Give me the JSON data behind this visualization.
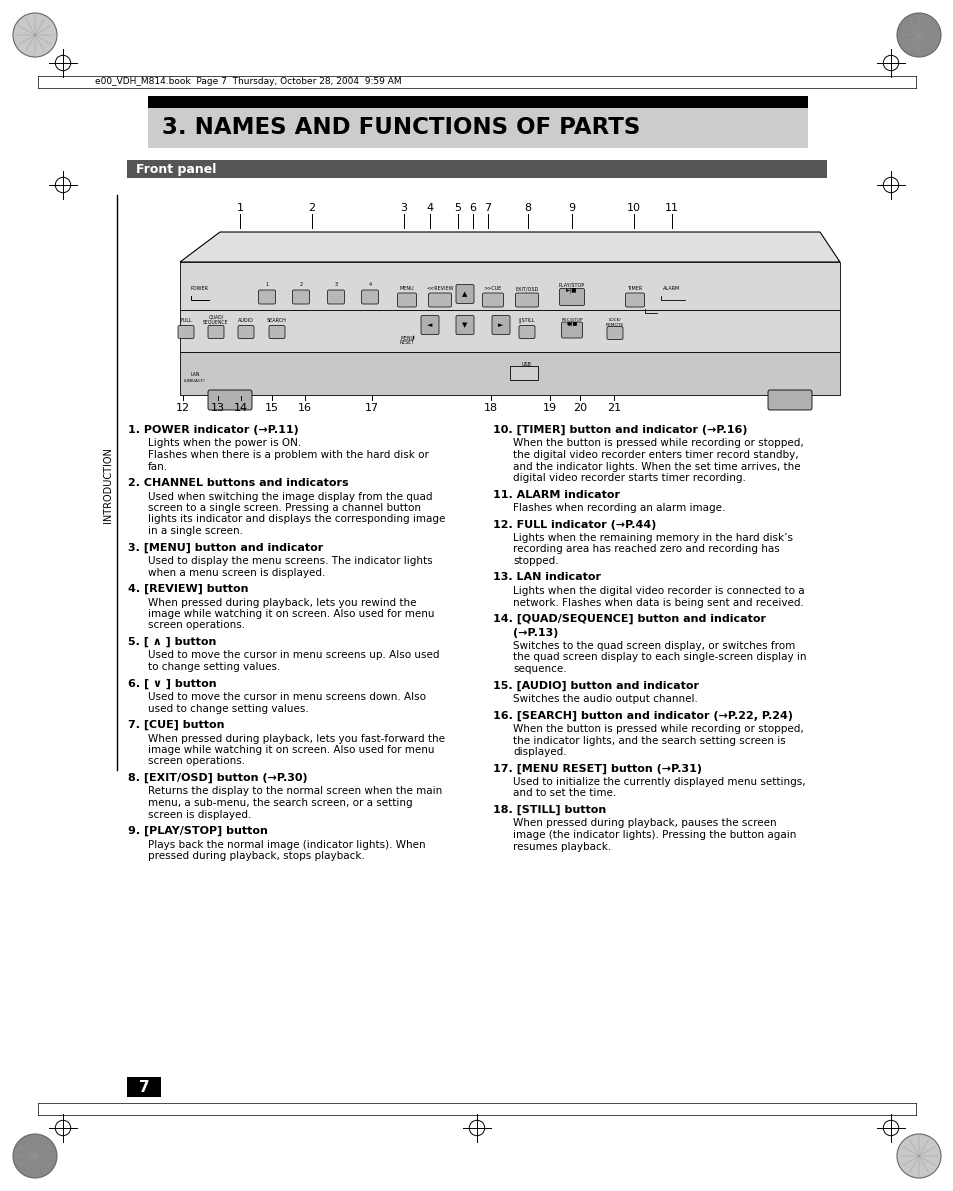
{
  "title": "3. NAMES AND FUNCTIONS OF PARTS",
  "section": "Front panel",
  "header_text": "e00_VDH_M814.book  Page 7  Thursday, October 28, 2004  9:59 AM",
  "page_number": "7",
  "bg_color": "#ffffff",
  "items_left": [
    {
      "num": "1.",
      "title": "POWER indicator (→P.11)",
      "desc": [
        "Lights when the power is ON.",
        "Flashes when there is a problem with the hard disk or",
        "fan."
      ]
    },
    {
      "num": "2.",
      "title": "CHANNEL buttons and indicators",
      "desc": [
        "Used when switching the image display from the quad",
        "screen to a single screen. Pressing a channel button",
        "lights its indicator and displays the corresponding image",
        "in a single screen."
      ]
    },
    {
      "num": "3.",
      "title": "[MENU] button and indicator",
      "desc": [
        "Used to display the menu screens. The indicator lights",
        "when a menu screen is displayed."
      ]
    },
    {
      "num": "4.",
      "title": "[REVIEW] button",
      "desc": [
        "When pressed during playback, lets you rewind the",
        "image while watching it on screen. Also used for menu",
        "screen operations."
      ]
    },
    {
      "num": "5.",
      "title": "[ ∧ ] button",
      "desc": [
        "Used to move the cursor in menu screens up. Also used",
        "to change setting values."
      ]
    },
    {
      "num": "6.",
      "title": "[ ∨ ] button",
      "desc": [
        "Used to move the cursor in menu screens down. Also",
        "used to change setting values."
      ]
    },
    {
      "num": "7.",
      "title": "[CUE] button",
      "desc": [
        "When pressed during playback, lets you fast-forward the",
        "image while watching it on screen. Also used for menu",
        "screen operations."
      ]
    },
    {
      "num": "8.",
      "title": "[EXIT/OSD] button (→P.30)",
      "desc": [
        "Returns the display to the normal screen when the main",
        "menu, a sub-menu, the search screen, or a setting",
        "screen is displayed."
      ]
    },
    {
      "num": "9.",
      "title": "[PLAY/STOP] button",
      "desc": [
        "Plays back the normal image (indicator lights). When",
        "pressed during playback, stops playback."
      ]
    }
  ],
  "items_right": [
    {
      "num": "10.",
      "title": "[TIMER] button and indicator (→P.16)",
      "desc": [
        "When the button is pressed while recording or stopped,",
        "the digital video recorder enters timer record standby,",
        "and the indicator lights. When the set time arrives, the",
        "digital video recorder starts timer recording."
      ]
    },
    {
      "num": "11.",
      "title": "ALARM indicator",
      "desc": [
        "Flashes when recording an alarm image."
      ]
    },
    {
      "num": "12.",
      "title": "FULL indicator (→P.44)",
      "desc": [
        "Lights when the remaining memory in the hard disk’s",
        "recording area has reached zero and recording has",
        "stopped."
      ]
    },
    {
      "num": "13.",
      "title": "LAN indicator",
      "desc": [
        "Lights when the digital video recorder is connected to a",
        "network. Flashes when data is being sent and received."
      ]
    },
    {
      "num": "14.",
      "title": "[QUAD/SEQUENCE] button and indicator",
      "title2": "(→P.13)",
      "desc": [
        "Switches to the quad screen display, or switches from",
        "the quad screen display to each single-screen display in",
        "sequence."
      ]
    },
    {
      "num": "15.",
      "title": "[AUDIO] button and indicator",
      "desc": [
        "Switches the audio output channel."
      ]
    },
    {
      "num": "16.",
      "title": "[SEARCH] button and indicator (→P.22, P.24)",
      "desc": [
        "When the button is pressed while recording or stopped,",
        "the indicator lights, and the search setting screen is",
        "displayed."
      ]
    },
    {
      "num": "17.",
      "title": "[MENU RESET] button (→P.31)",
      "desc": [
        "Used to initialize the currently displayed menu settings,",
        "and to set the time."
      ]
    },
    {
      "num": "18.",
      "title": "[STILL] button",
      "desc": [
        "When pressed during playback, pauses the screen",
        "image (the indicator lights). Pressing the button again",
        "resumes playback."
      ]
    }
  ],
  "top_nums": [
    "1",
    "2",
    "3",
    "4",
    "5",
    "6",
    "7",
    "8",
    "9",
    "10",
    "11"
  ],
  "top_nums_x": [
    240,
    312,
    404,
    430,
    458,
    473,
    488,
    528,
    572,
    634,
    672
  ],
  "bot_nums": [
    "12",
    "13",
    "14",
    "15",
    "16",
    "17",
    "18",
    "19",
    "20",
    "21"
  ],
  "bot_nums_x": [
    183,
    218,
    241,
    272,
    305,
    372,
    491,
    550,
    580,
    614
  ]
}
